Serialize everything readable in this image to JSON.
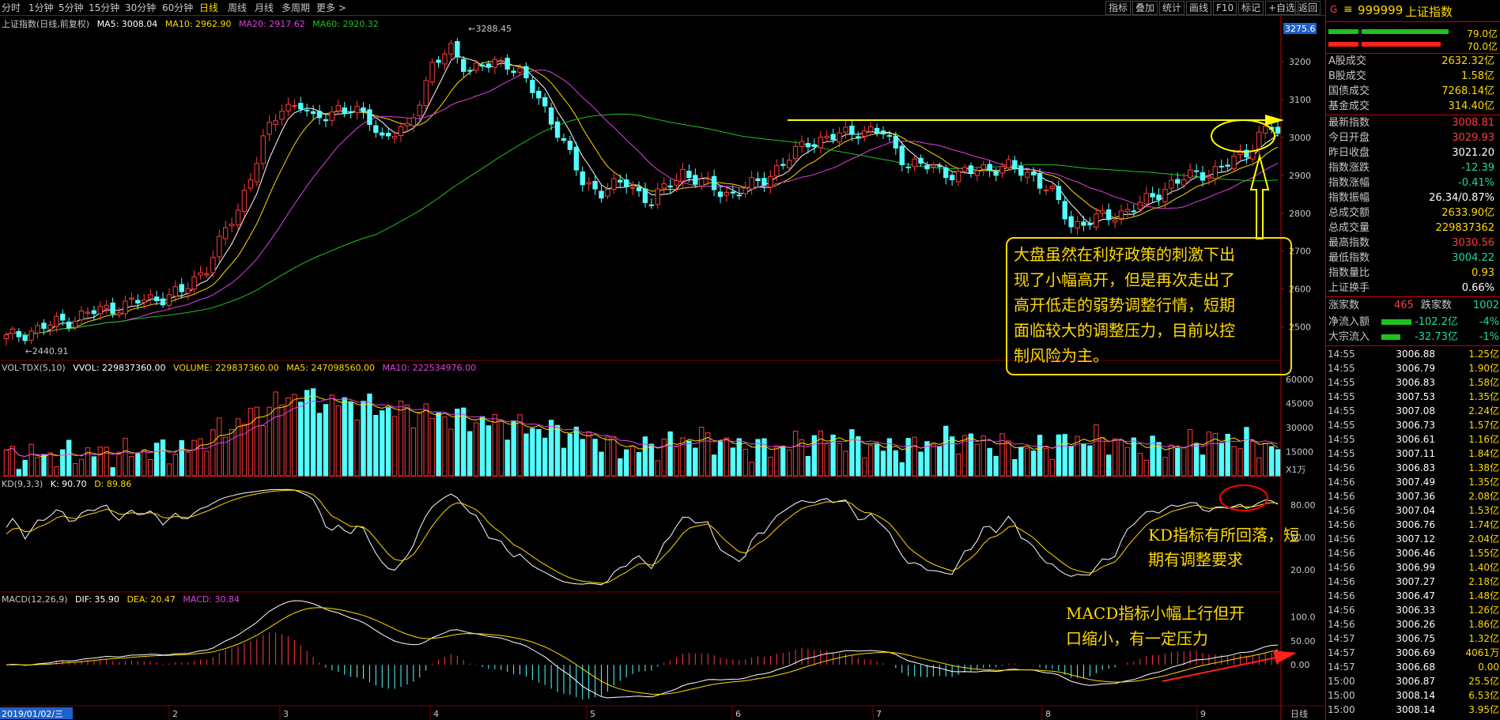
{
  "period_tabs": [
    "分时",
    "1分钟",
    "5分钟",
    "15分钟",
    "30分钟",
    "60分钟",
    "日线",
    "周线",
    "月线",
    "多周期",
    "更多 >"
  ],
  "active_period": "日线",
  "right_tabs": [
    "指标",
    "叠加",
    "统计",
    "画线",
    "F10",
    "标记",
    "+自选",
    "返回"
  ],
  "main_info": {
    "name": "上证指数(日线,前复权)",
    "ma5": "MA5: 3008.04",
    "ma10": "MA10: 2962.90",
    "ma20": "MA20: 2917.62",
    "ma60": "MA60: 2920.32"
  },
  "vol_info": {
    "name": "VOL-TDX(5,10)",
    "vvol": "VVOL: 229837360.00",
    "volume": "VOLUME: 229837360.00",
    "ma5": "MA5: 247098560.00",
    "ma10": "MA10: 222534976.00"
  },
  "kd_info": {
    "name": "KD(9,3,3)",
    "k": "K: 90.70",
    "d": "D: 89.86"
  },
  "macd_info": {
    "name": "MACD(12,26,9)",
    "dif": "DIF: 35.90",
    "dea": "DEA: 20.47",
    "macd": "MACD: 30.84"
  },
  "price_axis": [
    "3275.6",
    "3200",
    "3100",
    "3000",
    "2900",
    "2800",
    "2700",
    "2600",
    "2500"
  ],
  "vol_axis": [
    "60000",
    "45000",
    "30000",
    "15000",
    "X1万"
  ],
  "kd_axis": [
    "80.00",
    "50.00",
    "20.00"
  ],
  "macd_axis": [
    "100.0",
    "50.00",
    "0.00"
  ],
  "high_label": "3288.45",
  "low_label": "2440.91",
  "x_axis": {
    "date": "2019/01/02/三",
    "months": [
      "2",
      "3",
      "4",
      "5",
      "6",
      "7",
      "8",
      "9"
    ],
    "scale": "日线"
  },
  "annotations": {
    "main": [
      "大盘虽然在利好政策的刺激下出",
      "现了小幅高开，但是再次走出了",
      "高开低走的弱势调整行情，短期",
      "面临较大的调整压力，目前以控",
      "制风险为主。"
    ],
    "kd": [
      "KD指标有所回落，短",
      "期有调整要求"
    ],
    "macd": [
      "MACD指标小幅上行但开",
      "口缩小，有一定压力"
    ]
  },
  "quote": {
    "code_label": "G",
    "code": "999999",
    "name": "上证指数",
    "bar_values": [
      "79.0亿",
      "70.0亿"
    ],
    "stats_top": [
      {
        "label": "A股成交",
        "value": "2632.32亿"
      },
      {
        "label": "B股成交",
        "value": "1.58亿"
      },
      {
        "label": "国债成交",
        "value": "7268.14亿"
      },
      {
        "label": "基金成交",
        "value": "314.40亿"
      }
    ],
    "stats": [
      {
        "label": "最新指数",
        "value": "3008.81",
        "color": "#ff3b3b"
      },
      {
        "label": "今日开盘",
        "value": "3029.93",
        "color": "#ff3b3b"
      },
      {
        "label": "昨日收盘",
        "value": "3021.20",
        "color": "#ffffff"
      },
      {
        "label": "指数涨跌",
        "value": "-12.39",
        "color": "#20d8a0"
      },
      {
        "label": "指数涨幅",
        "value": "-0.41%",
        "color": "#20d8a0"
      },
      {
        "label": "指数振幅",
        "value": "26.34/0.87%",
        "color": "#ffffff"
      },
      {
        "label": "总成交额",
        "value": "2633.90亿",
        "color": "#ffd900"
      },
      {
        "label": "总成交量",
        "value": "229837362",
        "color": "#ffd900"
      },
      {
        "label": "最高指数",
        "value": "3030.56",
        "color": "#ff3b3b"
      },
      {
        "label": "最低指数",
        "value": "3004.22",
        "color": "#20d8a0"
      },
      {
        "label": "指数量比",
        "value": "0.93",
        "color": "#ffd900"
      },
      {
        "label": "上证换手",
        "value": "0.66%",
        "color": "#ffffff"
      }
    ],
    "updown": {
      "up_label": "涨家数",
      "up": "465",
      "down_label": "跌家数",
      "down": "1002"
    },
    "flows": [
      {
        "label": "净流入额",
        "value": "-102.2亿",
        "pct": "-4%"
      },
      {
        "label": "大宗流入",
        "value": "-32.73亿",
        "pct": "-1%"
      }
    ]
  },
  "ticks": [
    {
      "t": "14:55",
      "p": "3006.88",
      "v": "1.25亿"
    },
    {
      "t": "14:55",
      "p": "3006.79",
      "v": "1.90亿"
    },
    {
      "t": "14:55",
      "p": "3006.83",
      "v": "1.58亿"
    },
    {
      "t": "14:55",
      "p": "3007.53",
      "v": "1.35亿"
    },
    {
      "t": "14:55",
      "p": "3007.08",
      "v": "2.24亿"
    },
    {
      "t": "14:55",
      "p": "3006.73",
      "v": "1.57亿"
    },
    {
      "t": "14:55",
      "p": "3006.61",
      "v": "1.16亿"
    },
    {
      "t": "14:55",
      "p": "3007.11",
      "v": "1.84亿"
    },
    {
      "t": "14:56",
      "p": "3006.83",
      "v": "1.38亿"
    },
    {
      "t": "14:56",
      "p": "3007.49",
      "v": "1.35亿"
    },
    {
      "t": "14:56",
      "p": "3007.36",
      "v": "2.08亿"
    },
    {
      "t": "14:56",
      "p": "3007.04",
      "v": "1.53亿"
    },
    {
      "t": "14:56",
      "p": "3006.76",
      "v": "1.74亿"
    },
    {
      "t": "14:56",
      "p": "3007.12",
      "v": "2.04亿"
    },
    {
      "t": "14:56",
      "p": "3006.46",
      "v": "1.55亿"
    },
    {
      "t": "14:56",
      "p": "3006.99",
      "v": "1.40亿"
    },
    {
      "t": "14:56",
      "p": "3007.27",
      "v": "2.18亿"
    },
    {
      "t": "14:56",
      "p": "3006.47",
      "v": "1.48亿"
    },
    {
      "t": "14:56",
      "p": "3006.33",
      "v": "1.26亿"
    },
    {
      "t": "14:56",
      "p": "3006.26",
      "v": "1.86亿"
    },
    {
      "t": "14:57",
      "p": "3006.75",
      "v": "1.32亿"
    },
    {
      "t": "14:57",
      "p": "3006.69",
      "v": "4061万"
    },
    {
      "t": "14:57",
      "p": "3006.68",
      "v": "0.00"
    },
    {
      "t": "15:00",
      "p": "3006.87",
      "v": "25.5亿"
    },
    {
      "t": "15:00",
      "p": "3008.14",
      "v": "6.53亿"
    },
    {
      "t": "15:00",
      "p": "3008.14",
      "v": "3.95亿"
    }
  ]
}
